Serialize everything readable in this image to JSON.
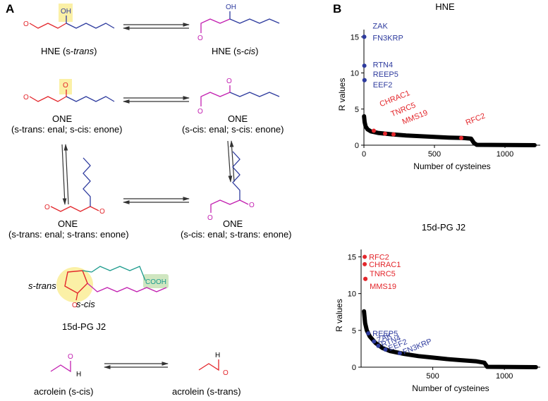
{
  "panels": {
    "a": {
      "letter": "A"
    },
    "b": {
      "letter": "B"
    }
  },
  "molecules": {
    "hne_trans": {
      "prefix": "HNE (s-",
      "italic": "trans",
      "suffix": ")",
      "oh": "OH"
    },
    "hne_cis": {
      "prefix": "HNE (s-",
      "italic": "cis",
      "suffix": ")",
      "oh": "OH"
    },
    "one1": {
      "name": "ONE",
      "detail": "(s-trans: enal; s-cis: enone)"
    },
    "one2": {
      "name": "ONE",
      "detail": "(s-cis: enal; s-cis: enone)"
    },
    "one3": {
      "name": "ONE",
      "detail": "(s-trans: enal; s-trans: enone)"
    },
    "one4": {
      "name": "ONE",
      "detail": "(s-cis: enal; s-trans: enone)"
    },
    "pg": {
      "name": "15d-PG J2",
      "s_trans": "s-trans",
      "s_cis": "s-cis",
      "cooh": "COOH"
    },
    "acrolein_cis": {
      "label": "acrolein (s-cis)",
      "h": "H"
    },
    "acrolein_trans": {
      "label": "acrolein (s-trans)",
      "h": "H"
    }
  },
  "colors": {
    "red": "#e3262b",
    "magenta": "#c21fb0",
    "blue": "#2e3b9e",
    "teal": "#1b9a8c",
    "highlight_yellow": "#fbf0a6",
    "highlight_green": "#cfe6c0"
  },
  "chart_data": [
    {
      "type": "scatter",
      "title": "HNE",
      "xlabel": "Number of cysteines",
      "ylabel": "R values",
      "xlim": [
        0,
        1250
      ],
      "ylim": [
        0,
        16
      ],
      "xticks": [
        0,
        500,
        1000
      ],
      "yticks": [
        0,
        5,
        10,
        15
      ],
      "curve": [
        [
          1,
          4.0
        ],
        [
          5,
          3.2
        ],
        [
          12,
          2.6
        ],
        [
          25,
          2.2
        ],
        [
          50,
          1.9
        ],
        [
          100,
          1.7
        ],
        [
          200,
          1.5
        ],
        [
          300,
          1.35
        ],
        [
          400,
          1.25
        ],
        [
          500,
          1.15
        ],
        [
          600,
          1.05
        ],
        [
          700,
          1.0
        ],
        [
          760,
          0.9
        ],
        [
          780,
          0.3
        ],
        [
          800,
          0.05
        ],
        [
          1210,
          0.0
        ]
      ],
      "highlights": [
        {
          "label": "ZAK",
          "x": 2,
          "y": 15.0,
          "color": "#2e3b9e"
        },
        {
          "label": "FN3KRP",
          "x": 2,
          "y": 15.0,
          "color": "#2e3b9e"
        },
        {
          "label": "RTN4",
          "x": 3,
          "y": 11.0,
          "color": "#2e3b9e"
        },
        {
          "label": "REEP5",
          "x": 4,
          "y": 9.0,
          "color": "#2e3b9e"
        },
        {
          "label": "EEF2",
          "x": 4,
          "y": 9.0,
          "color": "#2e3b9e"
        },
        {
          "label": "CHRAC1",
          "x": 70,
          "y": 2.0,
          "color": "#e3262b"
        },
        {
          "label": "TNRC5",
          "x": 150,
          "y": 1.6,
          "color": "#e3262b"
        },
        {
          "label": "MMS19",
          "x": 210,
          "y": 1.5,
          "color": "#e3262b"
        },
        {
          "label": "RFC2",
          "x": 690,
          "y": 1.0,
          "color": "#e3262b"
        }
      ]
    },
    {
      "type": "scatter",
      "title": "15d-PG J2",
      "xlabel": "Number of cysteines",
      "ylabel": "R values",
      "xlim": [
        0,
        1250
      ],
      "ylim": [
        0,
        16
      ],
      "xticks": [
        500,
        1000
      ],
      "yticks": [
        0,
        5,
        10,
        15
      ],
      "curve": [
        [
          20,
          7.6
        ],
        [
          28,
          6.0
        ],
        [
          40,
          5.0
        ],
        [
          60,
          4.2
        ],
        [
          100,
          3.3
        ],
        [
          150,
          2.6
        ],
        [
          200,
          2.2
        ],
        [
          300,
          1.8
        ],
        [
          400,
          1.5
        ],
        [
          500,
          1.3
        ],
        [
          600,
          1.1
        ],
        [
          700,
          0.95
        ],
        [
          800,
          0.8
        ],
        [
          860,
          0.6
        ],
        [
          880,
          0.05
        ],
        [
          1220,
          0.0
        ]
      ],
      "highlights": [
        {
          "label": "RFC2",
          "x": 25,
          "y": 15.0,
          "color": "#e3262b"
        },
        {
          "label": "CHRAC1",
          "x": 25,
          "y": 14.0,
          "color": "#e3262b"
        },
        {
          "label": "TNRC5",
          "x": 30,
          "y": 12.0,
          "color": "#e3262b"
        },
        {
          "label": "MMS19",
          "x": 30,
          "y": 12.0,
          "color": "#e3262b"
        },
        {
          "label": "REEP5",
          "x": 50,
          "y": 4.6,
          "color": "#2e3b9e"
        },
        {
          "label": "ZAK",
          "x": 90,
          "y": 3.5,
          "color": "#2e3b9e"
        },
        {
          "label": "RTN4",
          "x": 120,
          "y": 2.9,
          "color": "#2e3b9e"
        },
        {
          "label": "EEF2",
          "x": 170,
          "y": 2.4,
          "color": "#2e3b9e"
        },
        {
          "label": "FN3KRP",
          "x": 270,
          "y": 1.9,
          "color": "#2e3b9e"
        }
      ]
    }
  ]
}
